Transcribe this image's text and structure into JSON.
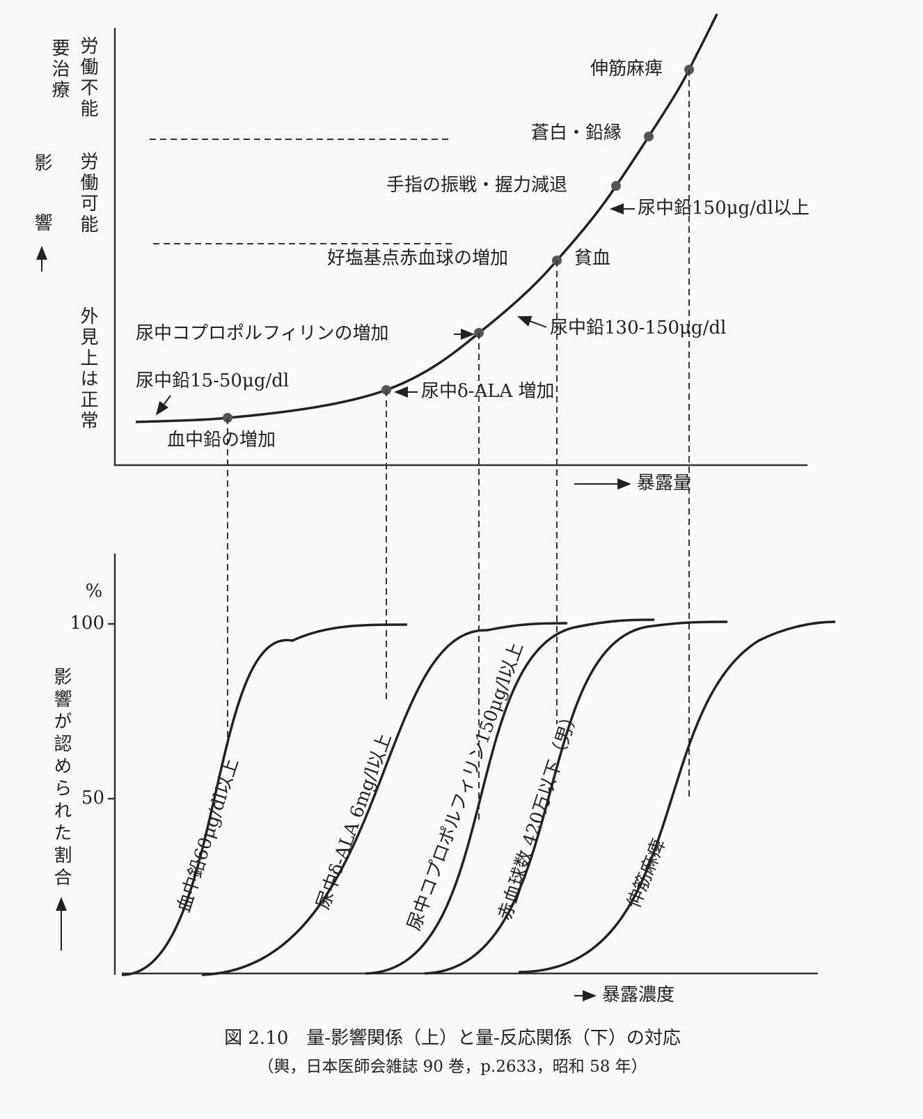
{
  "top": {
    "levels": [
      "要治療",
      "労働不能",
      "労働可能",
      "外見上は正常"
    ],
    "y_axis_label": "影響",
    "x_axis_label": "暴露量",
    "labels": [
      "伸筋麻痺",
      "蒼白・鉛縁",
      "手指の振戦・握力減退",
      "尿中鉛150μg/dl以上",
      "好塩基点赤血球の増加",
      "貧血",
      "尿中コプロポルフィリンの増加",
      "尿中鉛130-150μg/dl",
      "尿中鉛15-50μg/dl",
      "尿中δ-ALA 増加",
      "血中鉛の増加"
    ]
  },
  "bottom": {
    "unit": "%",
    "ticks": [
      "100",
      "50"
    ],
    "y_axis_label": "影響が認められた割合",
    "x_axis_label": "暴露濃度",
    "curve_labels": [
      "血中鉛60μg/dl以上",
      "尿中δ-ALA 6mg/l以上",
      "尿中コプロポルフィリン150μg/l以上",
      "赤血球数 420万以下（男）",
      "伸筋麻痺"
    ]
  },
  "caption": [
    "図 2.10　量-影響関係（上）と量-反応関係（下）の対応",
    "（輿，日本医師会雑誌 90 巻，p.2633，昭和 58 年）"
  ]
}
